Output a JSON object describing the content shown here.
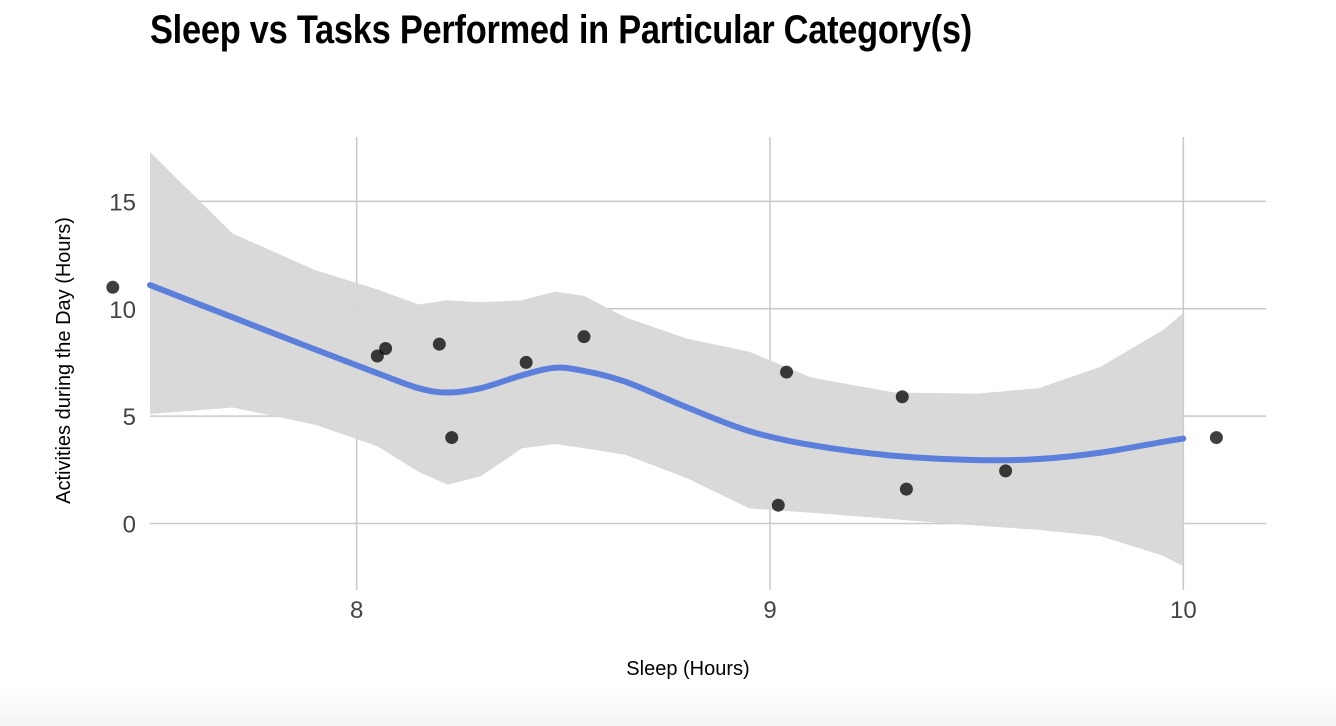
{
  "chart_data": {
    "type": "scatter",
    "title": "Sleep vs Tasks Performed in Particular Category(s)",
    "xlabel": "Sleep (Hours)",
    "ylabel": "Activities during the Day (Hours)",
    "xlim": [
      7.5,
      10.2
    ],
    "ylim": [
      -3.1,
      18.0
    ],
    "x_ticks": [
      8,
      9,
      10
    ],
    "y_ticks": [
      0,
      5,
      10,
      15
    ],
    "grid": true,
    "points": [
      {
        "x": 7.41,
        "y": 11.0
      },
      {
        "x": 8.05,
        "y": 7.8
      },
      {
        "x": 8.07,
        "y": 8.15
      },
      {
        "x": 8.2,
        "y": 8.35
      },
      {
        "x": 8.23,
        "y": 4.0
      },
      {
        "x": 8.41,
        "y": 7.5
      },
      {
        "x": 8.55,
        "y": 8.7
      },
      {
        "x": 9.02,
        "y": 0.85
      },
      {
        "x": 9.04,
        "y": 7.05
      },
      {
        "x": 9.32,
        "y": 5.9
      },
      {
        "x": 9.33,
        "y": 1.6
      },
      {
        "x": 9.57,
        "y": 2.45
      },
      {
        "x": 10.08,
        "y": 4.0
      }
    ],
    "smooth": {
      "color": "#5b7fdb",
      "band_color": "#d7d7d7",
      "x": [
        7.5,
        7.7,
        7.9,
        8.05,
        8.15,
        8.22,
        8.3,
        8.4,
        8.48,
        8.55,
        8.65,
        8.8,
        8.95,
        9.1,
        9.3,
        9.5,
        9.65,
        9.8,
        9.95,
        10.0
      ],
      "y": [
        11.1,
        9.6,
        8.1,
        7.0,
        6.3,
        6.1,
        6.3,
        6.9,
        7.25,
        7.1,
        6.6,
        5.4,
        4.3,
        3.65,
        3.15,
        2.95,
        3.0,
        3.3,
        3.8,
        3.95
      ],
      "upper": [
        17.3,
        13.5,
        11.8,
        10.9,
        10.2,
        10.4,
        10.3,
        10.4,
        10.8,
        10.6,
        9.6,
        8.6,
        8.0,
        6.8,
        6.1,
        6.05,
        6.3,
        7.3,
        9.0,
        9.8
      ],
      "lower": [
        5.1,
        5.4,
        4.6,
        3.6,
        2.4,
        1.8,
        2.2,
        3.5,
        3.7,
        3.5,
        3.2,
        2.1,
        0.7,
        0.5,
        0.2,
        -0.1,
        -0.3,
        -0.6,
        -1.5,
        -2.0
      ]
    }
  }
}
